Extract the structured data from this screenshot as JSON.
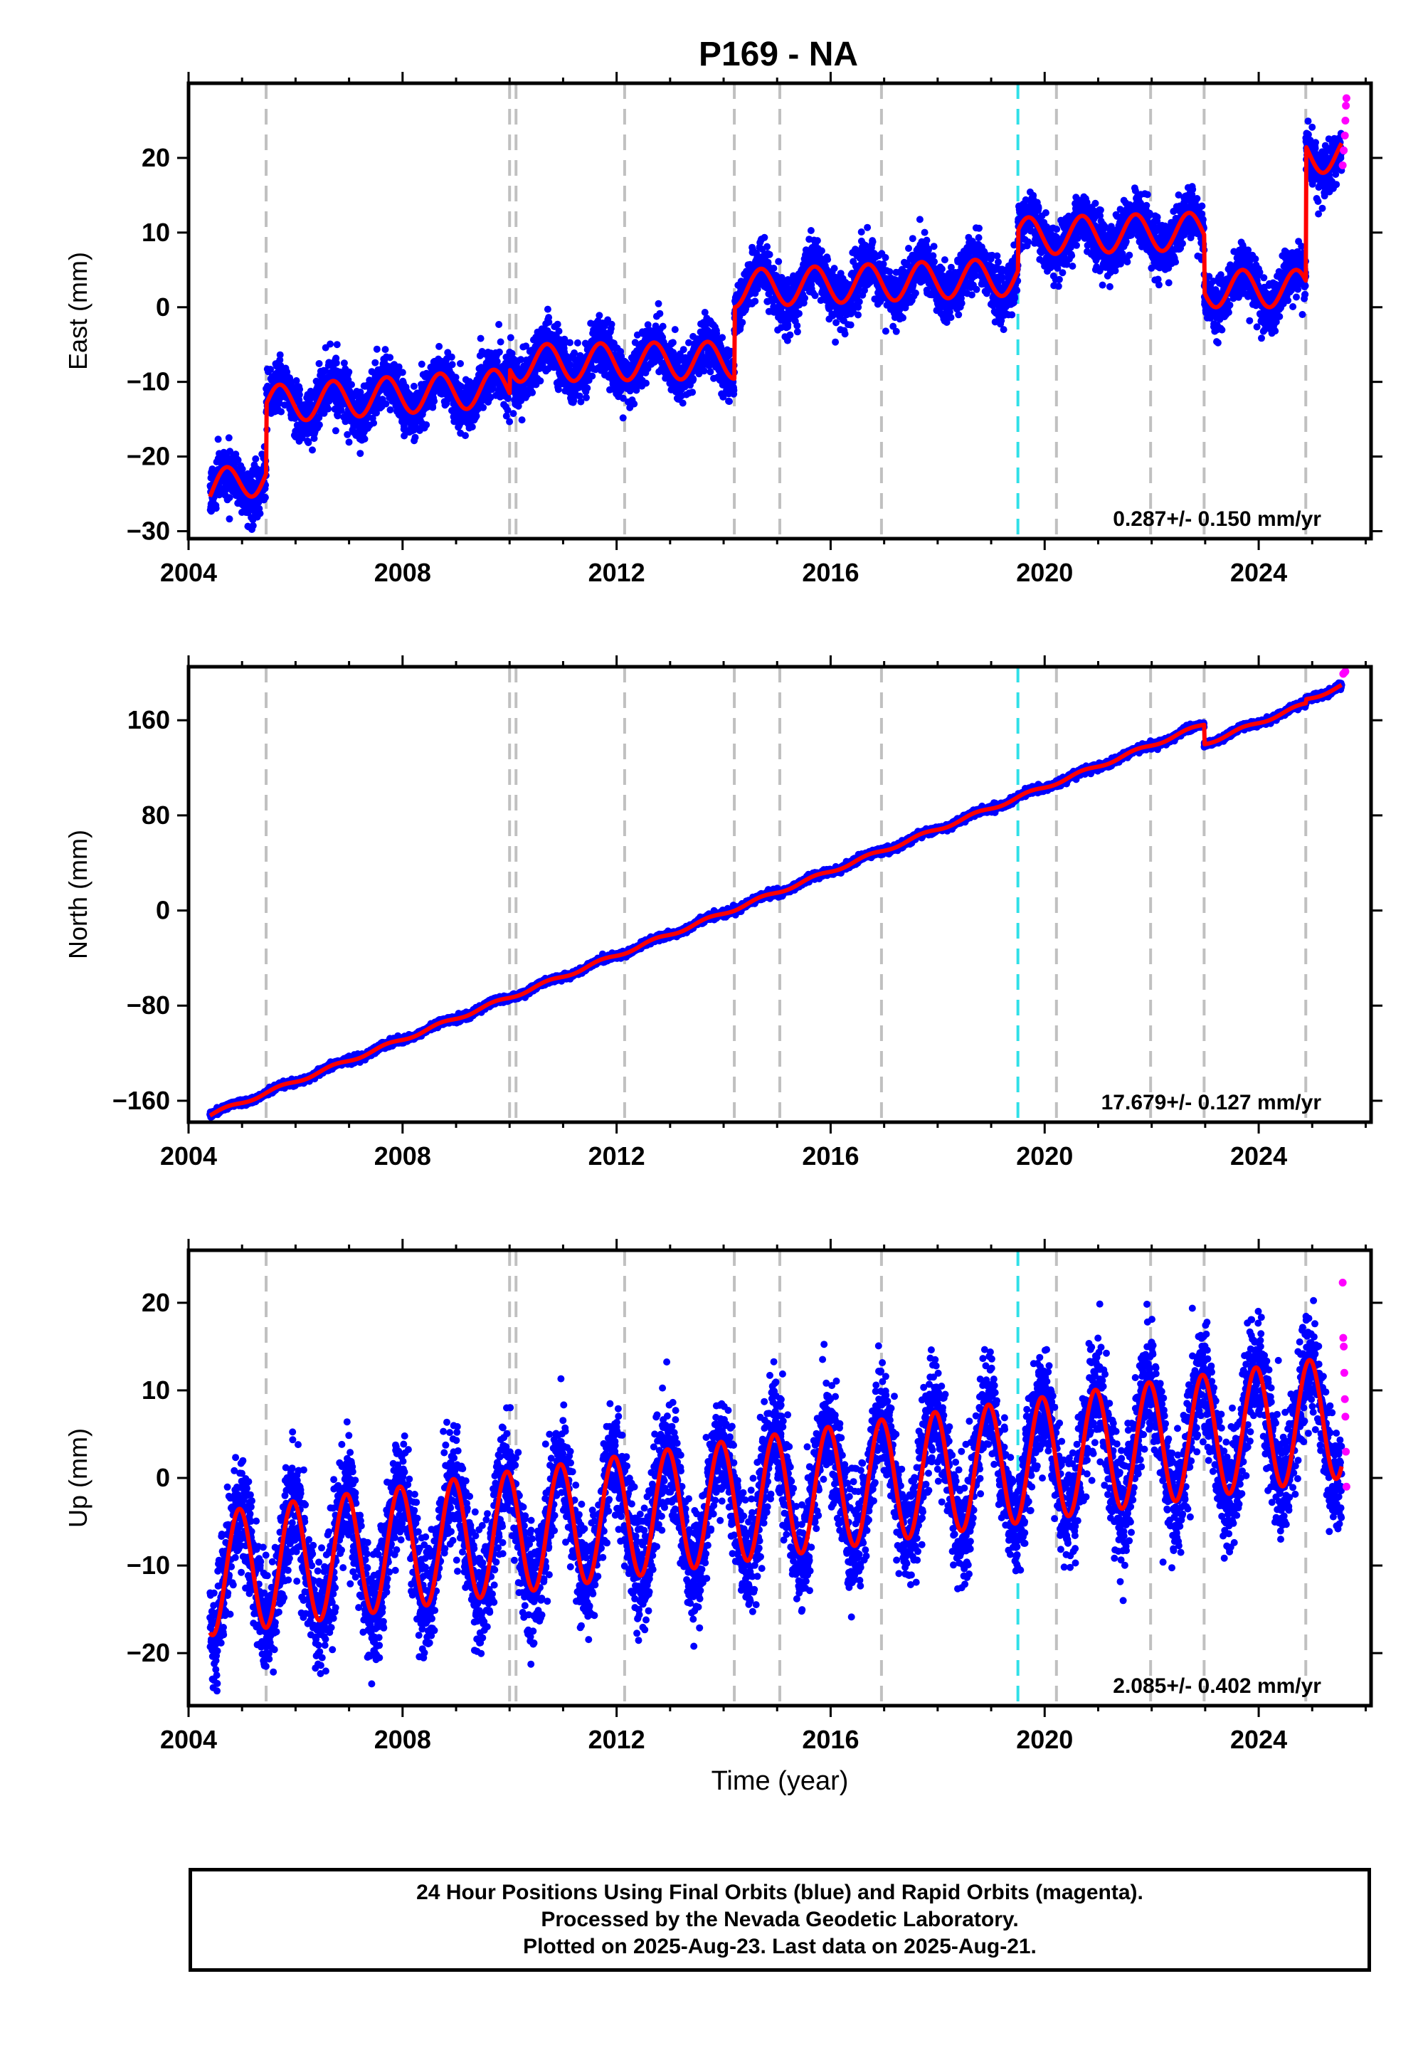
{
  "title": "P169 - NA",
  "chart_data": [
    {
      "type": "scatter",
      "panel": "east",
      "ylabel": "East (mm)",
      "xlabel": "",
      "xlim": [
        2004,
        2026.1
      ],
      "ylim": [
        -31,
        30
      ],
      "xticks": [
        2004,
        2008,
        2012,
        2016,
        2020,
        2024
      ],
      "xtick_labels": [
        "2004",
        "2008",
        "2012",
        "2016",
        "2020",
        "2024"
      ],
      "yticks": [
        -30,
        -20,
        -10,
        0,
        10,
        20
      ],
      "ytick_labels": [
        "−30",
        "−20",
        "−10",
        "0",
        "10",
        "20"
      ],
      "rate_label": "0.287+/- 0.150 mm/yr",
      "start": 2004.4,
      "end": 2025.55,
      "segments": [
        {
          "start": 2004.4,
          "end": 2005.45,
          "offset": -24.6,
          "slope": 2.2
        },
        {
          "start": 2005.45,
          "end": 2010.0,
          "offset": -13.0,
          "slope": 0.5
        },
        {
          "start": 2010.0,
          "end": 2014.2,
          "offset": -7.5,
          "slope": 0.1
        },
        {
          "start": 2014.2,
          "end": 2019.5,
          "offset": 2.5,
          "slope": 0.3
        },
        {
          "start": 2019.5,
          "end": 2022.98,
          "offset": 9.5,
          "slope": 0.2
        },
        {
          "start": 2022.98,
          "end": 2024.88,
          "offset": 2.5,
          "slope": 0.0
        },
        {
          "start": 2024.88,
          "end": 2025.55,
          "offset": 20.5,
          "slope": 0.0
        }
      ],
      "amplitude": 2.5,
      "phase": 0.45,
      "noise": 1.7,
      "rapid": {
        "x": [
          2025.57,
          2025.59,
          2025.61,
          2025.62,
          2025.63,
          2025.64
        ],
        "y": [
          19,
          21,
          23,
          25,
          27,
          28
        ]
      }
    },
    {
      "type": "scatter",
      "panel": "north",
      "ylabel": "North (mm)",
      "xlabel": "",
      "xlim": [
        2004,
        2026.1
      ],
      "ylim": [
        -178,
        205
      ],
      "xticks": [
        2004,
        2008,
        2012,
        2016,
        2020,
        2024
      ],
      "xtick_labels": [
        "2004",
        "2008",
        "2012",
        "2016",
        "2020",
        "2024"
      ],
      "yticks": [
        -160,
        -80,
        0,
        80,
        160
      ],
      "ytick_labels": [
        "−160",
        "−80",
        "0",
        "80",
        "160"
      ],
      "rate_label": "17.679+/- 0.127 mm/yr",
      "start": 2004.4,
      "end": 2025.55,
      "segments": [
        {
          "start": 2004.4,
          "end": 2022.98,
          "offset": -172.0,
          "slope": 17.679
        },
        {
          "start": 2022.98,
          "end": 2024.88,
          "offset": 140.0,
          "slope": 17.679
        },
        {
          "start": 2024.88,
          "end": 2025.55,
          "offset": 177.0,
          "slope": 17.679
        }
      ],
      "amplitude": 1.5,
      "phase": 0.45,
      "noise": 1.3,
      "rapid": {
        "x": [
          2025.58,
          2025.6,
          2025.62
        ],
        "y": [
          199,
          200,
          201
        ]
      }
    },
    {
      "type": "scatter",
      "panel": "up",
      "ylabel": "Up (mm)",
      "xlabel": "Time (year)",
      "xlim": [
        2004,
        2026.1
      ],
      "ylim": [
        -26,
        26
      ],
      "xticks": [
        2004,
        2008,
        2012,
        2016,
        2020,
        2024
      ],
      "xtick_labels": [
        "2004",
        "2008",
        "2012",
        "2016",
        "2020",
        "2024"
      ],
      "yticks": [
        -20,
        -10,
        0,
        10,
        20
      ],
      "ytick_labels": [
        "−20",
        "−10",
        "0",
        "10",
        "20"
      ],
      "rate_label": "2.085+/- 0.402 mm/yr",
      "start": 2004.4,
      "end": 2025.55,
      "segments": [
        {
          "start": 2004.4,
          "end": 2025.55,
          "offset": -11.0,
          "slope": 0.85
        }
      ],
      "amplitude": 7.0,
      "phase": 0.7,
      "noise": 3.2,
      "rapid": {
        "x": [
          2025.57,
          2025.58,
          2025.59,
          2025.6,
          2025.61,
          2025.62,
          2025.63,
          2025.64
        ],
        "y": [
          22.3,
          16,
          15,
          12,
          9,
          7,
          3,
          -1
        ]
      }
    }
  ],
  "events": {
    "gray_dashed": [
      2005.45,
      2010.0,
      2010.12,
      2012.15,
      2014.2,
      2015.05,
      2016.95,
      2020.22,
      2021.98,
      2022.98,
      2024.88
    ],
    "cyan_dashed": [
      2019.5
    ]
  },
  "colors": {
    "final_orbits": "#0000ff",
    "rapid_orbits": "#ff00ff",
    "model": "#ff0000",
    "gray_events": "#c0c0c0",
    "cyan_event": "#30e0e8"
  },
  "caption": {
    "line1": "24 Hour Positions Using Final Orbits (blue) and Rapid Orbits (magenta).",
    "line2": "Processed by the Nevada Geodetic Laboratory.",
    "line3": "Plotted on 2025-Aug-23. Last data on 2025-Aug-21."
  }
}
